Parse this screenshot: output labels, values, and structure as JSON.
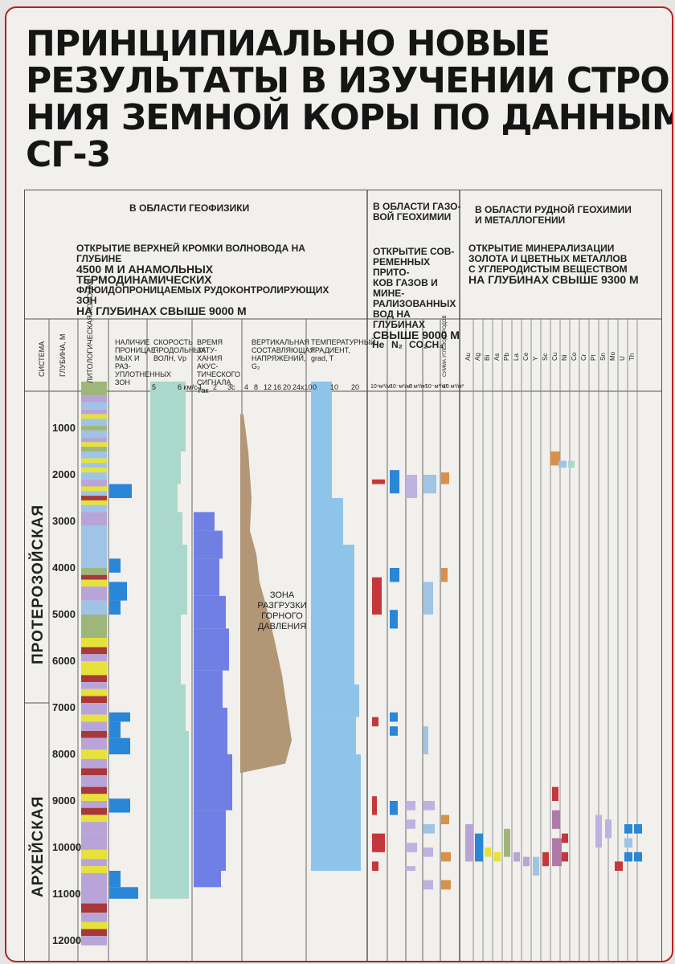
{
  "title_lines": [
    "ПРИНЦИПИАЛЬНО НОВЫЕ",
    "РЕЗУЛЬТАТЫ В ИЗУЧЕНИИ СТРОЕ-",
    "НИЯ ЗЕМНОЙ КОРЫ ПО ДАННЫМ",
    "СГ-3"
  ],
  "sections": {
    "geophysics": {
      "heading": "В  ОБЛАСТИ    ГЕОФИЗИКИ",
      "finding_lines": [
        "ОТКРЫТИЕ ВЕРХНЕЙ КРОМКИ ВОЛНОВОДА НА ГЛУБИНЕ",
        "4500 М  И  АНАМОЛЬНЫХ ТЕРМОДИНАМИЧЕСКИХ",
        "ФЛЮИДОПРОНИЦАЕМЫХ  РУДОКОНТРОЛИРУЮЩИХ ЗОН",
        "НА ГЛУБИНАХ    СВЫШЕ  9000 М"
      ]
    },
    "gas": {
      "heading_lines": [
        "В  ОБЛАСТИ ГАЗО-",
        "ВОЙ ГЕОХИМИИ"
      ],
      "finding_lines": [
        "ОТКРЫТИЕ  СОВ-",
        "РЕМЕННЫХ ПРИТО-",
        "КОВ ГАЗОВ И МИНЕ-",
        "РАЛИЗОВАННЫХ",
        "ВОД НА ГЛУБИНАХ",
        "СВЫШЕ  9000 М"
      ]
    },
    "ore": {
      "heading_lines": [
        "В  ОБЛАСТИ РУДНОЙ ГЕОХИМИИ",
        "И МЕТАЛЛОГЕНИИ"
      ],
      "finding_lines": [
        "ОТКРЫТИЕ  МИНЕРАЛИЗАЦИИ",
        "ЗОЛОТА И ЦВЕТНЫХ МЕТАЛЛОВ",
        "С УГЛЕРОДИСТЫМ ВЕЩЕСТВОМ",
        "НА ГЛУБИНАХ СВЫШЕ  9300 М"
      ]
    }
  },
  "columns": {
    "system": "СИСТЕМА",
    "depth": "ГЛУБИНА, М",
    "litho": "ЛИТОЛОГИЧЕСКАЯ КОЛОНКА",
    "perm_lines": [
      "НАЛИЧИЕ",
      "ПРОНИЦАЕ-",
      "МЫХ И РАЗ-",
      "УПЛОТНЕННЫХ",
      "ЗОН"
    ],
    "vel_lines": [
      "СКОРОСТЬ",
      "ПРОДОЛЬНЫХ",
      "ВОЛН, Vp"
    ],
    "vel_ticks": [
      "5",
      "6 км/с"
    ],
    "att_lines": [
      "ВРЕМЯ ЗАТУ-",
      "ХАНИЯ АКУС-",
      "ТИЧЕСКОГО",
      "СИГНАЛА, Τак"
    ],
    "att_ticks": [
      "1",
      "2",
      "3c"
    ],
    "stress_lines": [
      "ВЕРТИКАЛЬНАЯ",
      "СОСТАВЛЯЮЩАЯ",
      "НАПРЯЖЕНИЙ,",
      "G₂"
    ],
    "stress_ticks": [
      "4",
      "8",
      "12",
      "16",
      "20",
      "24x10"
    ],
    "temp_lines": [
      "ТЕМПЕРАТУРНЫЙ",
      "ГРАДИЕНТ,",
      "grad, T"
    ],
    "temp_ticks": [
      "0",
      "10",
      "20"
    ],
    "gas_labels": [
      "He",
      "N₂",
      "CO₂",
      "CH₄"
    ],
    "gas_sum": "СУММА УГЛЕВОДОРОДОВ",
    "gas_ticks": [
      "10⁴м³/м³",
      "10⁻м³/м³",
      "3 м³/м³",
      "10⁻м³/м³",
      "10 м³/м³"
    ],
    "elements": [
      "Au",
      "Ag",
      "Bi",
      "As",
      "Pb",
      "La",
      "Ce",
      "Y",
      "Sc",
      "Cu",
      "Ni",
      "Co",
      "Cr",
      "Pt",
      "Sn",
      "Mo",
      "U",
      "Th"
    ]
  },
  "depth_ticks": [
    "1000",
    "2000",
    "3000",
    "4000",
    "5000",
    "6000",
    "7000",
    "8000",
    "9000",
    "10000",
    "11000",
    "12000"
  ],
  "eras": [
    "ПРОТЕРОЗОЙСКАЯ",
    "АРХЕЙСКАЯ"
  ],
  "zone_note_lines": [
    "ЗОНА",
    "РАЗГРУЗКИ",
    "ГОРНОГО",
    "ДАВЛЕНИЯ"
  ],
  "colors": {
    "border_red": "#b02424",
    "litho_yellow": "#e6e23a",
    "litho_blue": "#9fc4e6",
    "litho_green": "#9fb67a",
    "litho_purple": "#b9a4d8",
    "litho_red": "#a8383a",
    "perm_blue": "#2a86d6",
    "velocity_teal": "#aad8cc",
    "attenuation_blue": "#6f7fe3",
    "stress_brown": "#b39676",
    "temperature_blue": "#8fc4ea",
    "gas_red": "#c4373a",
    "gas_orange": "#d8904b",
    "gas_lilac": "#bcb3e0",
    "ore_magenta": "#b07aa8"
  }
}
